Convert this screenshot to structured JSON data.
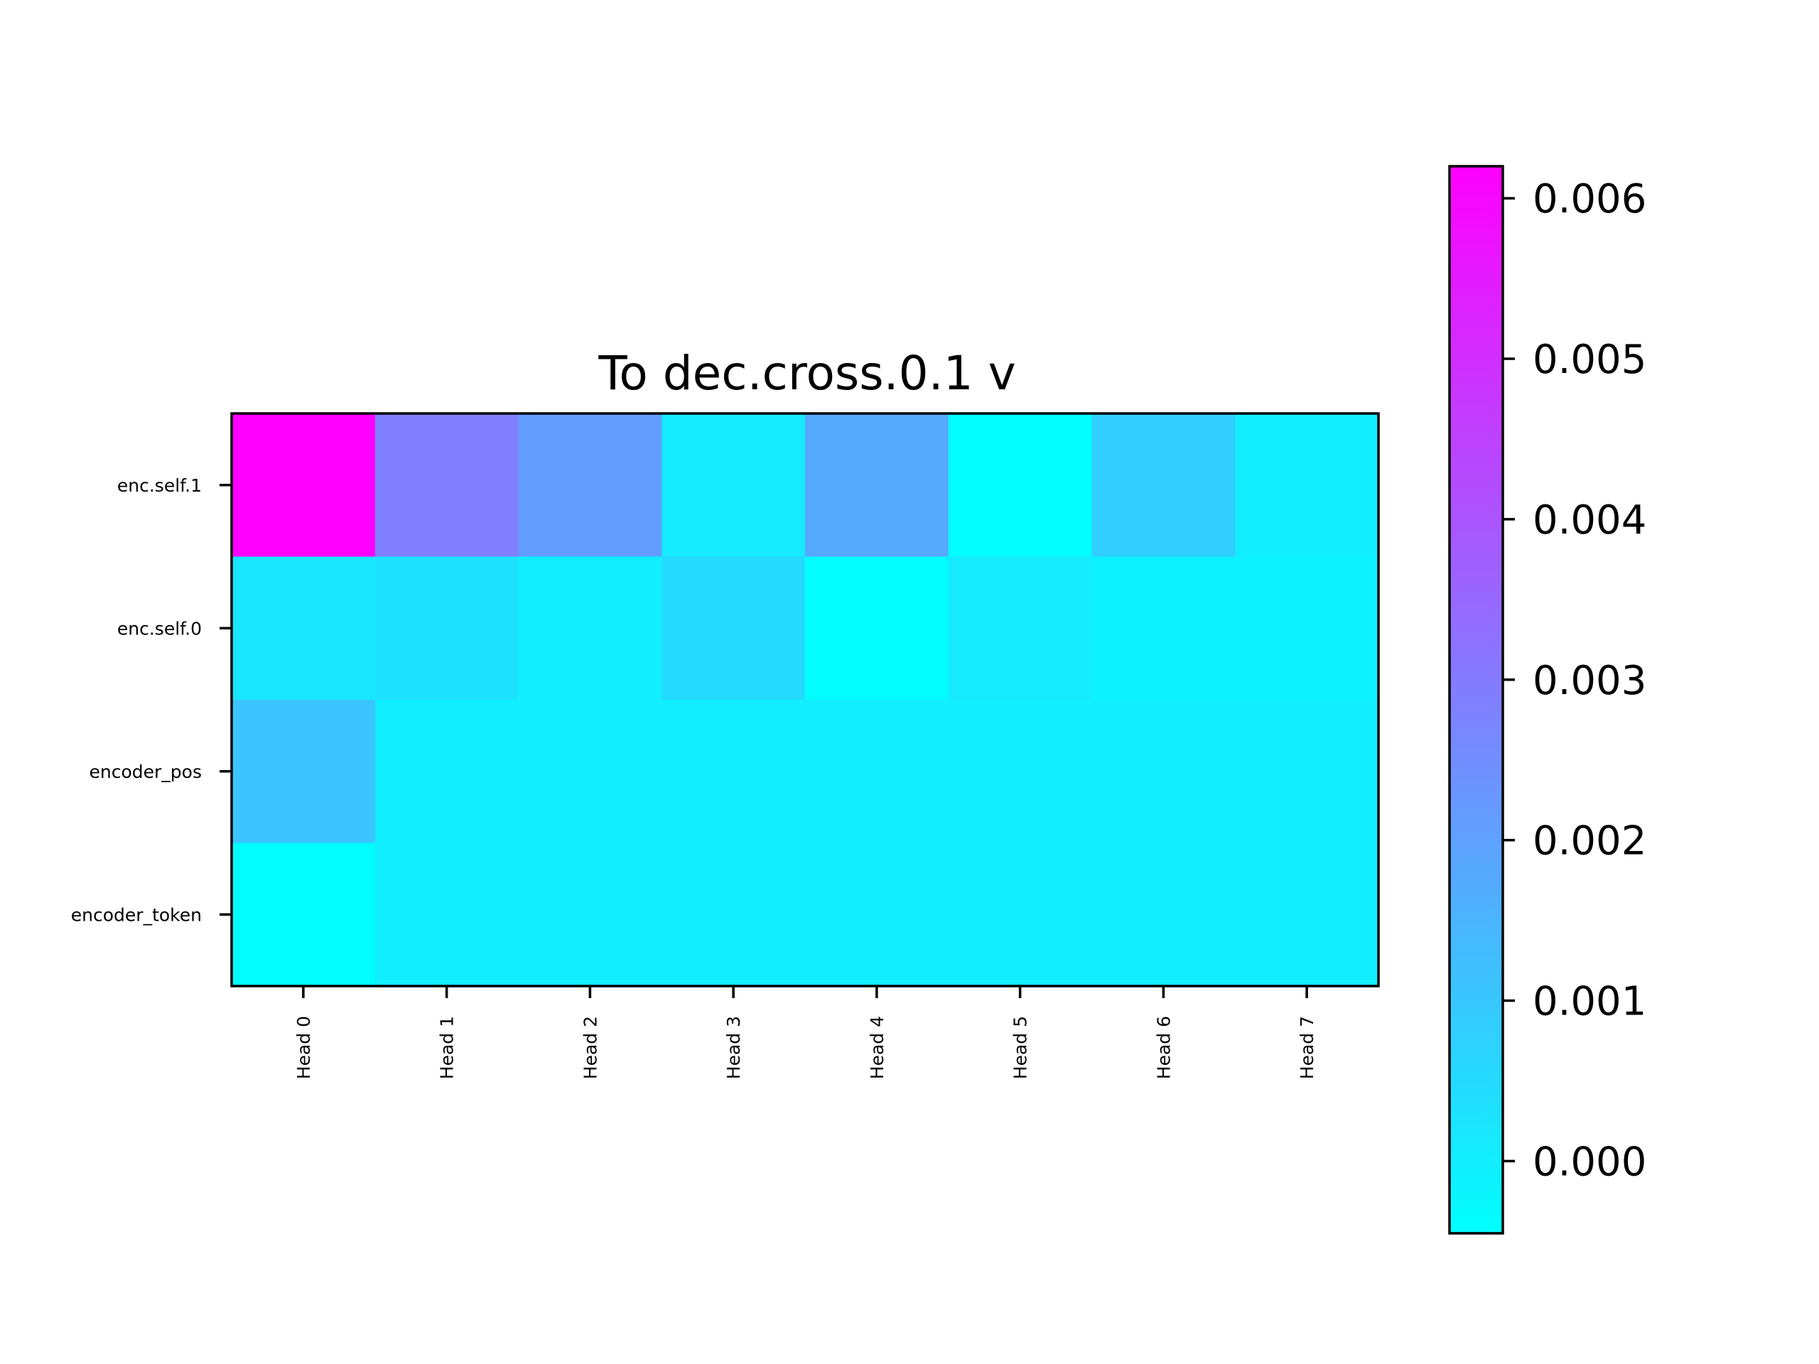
{
  "chart_data": {
    "type": "heatmap",
    "title": "To dec.cross.0.1 v",
    "xlabel": "",
    "ylabel": "",
    "x_categories": [
      "Head 0",
      "Head 1",
      "Head 2",
      "Head 3",
      "Head 4",
      "Head 5",
      "Head 6",
      "Head 7"
    ],
    "y_categories": [
      "enc.self.1",
      "enc.self.0",
      "encoder_pos",
      "encoder_token"
    ],
    "values": [
      [
        0.0062,
        0.0029,
        0.0021,
        0.0001,
        0.0018,
        -0.0004,
        0.0008,
        0.0
      ],
      [
        0.0002,
        0.0003,
        0.0,
        0.0005,
        -0.0004,
        0.0001,
        -0.0001,
        -0.0001
      ],
      [
        0.0011,
        0.0,
        0.0,
        0.0,
        0.0,
        0.0,
        0.0,
        0.0
      ],
      [
        -0.0004,
        0.0,
        0.0,
        0.0,
        0.0,
        0.0,
        0.0,
        0.0
      ]
    ],
    "colormap": "cool",
    "colormap_low": "#00ffff",
    "colormap_high": "#ff00ff",
    "colorbar": {
      "vmin": -0.00045,
      "vmax": 0.0062,
      "ticks": [
        0.0,
        0.001,
        0.002,
        0.003,
        0.004,
        0.005,
        0.006
      ],
      "tick_labels": [
        "0.000",
        "0.001",
        "0.002",
        "0.003",
        "0.004",
        "0.005",
        "0.006"
      ]
    },
    "grid": false,
    "legend": "none"
  }
}
